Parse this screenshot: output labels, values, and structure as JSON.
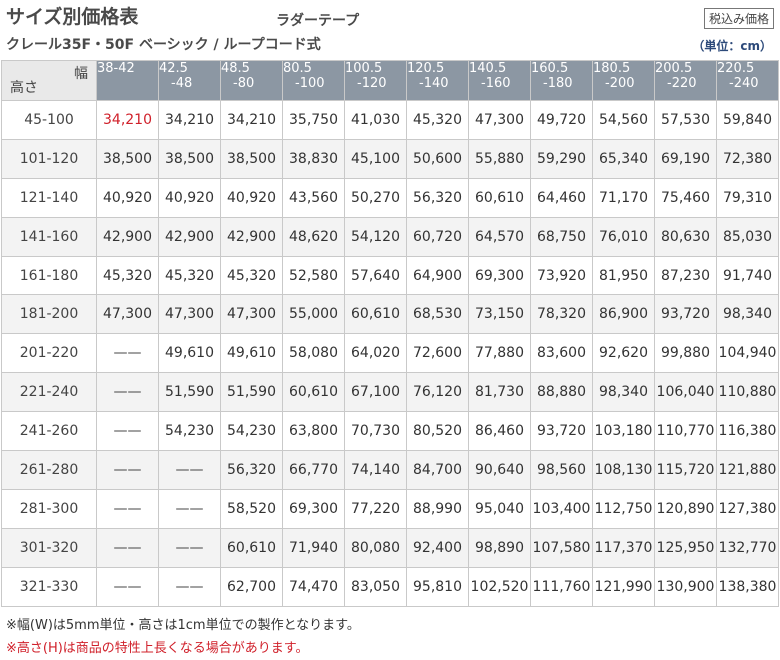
{
  "header": {
    "title": "サイズ別価格表",
    "subtitle_top": "ラダーテープ",
    "subtitle": "クレール35F・50F ベーシック / ループコード式",
    "tax_badge": "税込み価格",
    "unit": "（単位：cm）"
  },
  "table": {
    "corner_width_label": "幅",
    "corner_height_label": "高さ",
    "columns": [
      [
        "38-42",
        ""
      ],
      [
        "42.5",
        "-48"
      ],
      [
        "48.5",
        "-80"
      ],
      [
        "80.5",
        "-100"
      ],
      [
        "100.5",
        "-120"
      ],
      [
        "120.5",
        "-140"
      ],
      [
        "140.5",
        "-160"
      ],
      [
        "160.5",
        "-180"
      ],
      [
        "180.5",
        "-200"
      ],
      [
        "200.5",
        "-220"
      ],
      [
        "220.5",
        "-240"
      ]
    ],
    "rows": [
      {
        "height": "45-100",
        "prices": [
          "34,210",
          "34,210",
          "34,210",
          "35,750",
          "41,030",
          "45,320",
          "47,300",
          "49,720",
          "54,560",
          "57,530",
          "59,840"
        ]
      },
      {
        "height": "101-120",
        "prices": [
          "38,500",
          "38,500",
          "38,500",
          "38,830",
          "45,100",
          "50,600",
          "55,880",
          "59,290",
          "65,340",
          "69,190",
          "72,380"
        ]
      },
      {
        "height": "121-140",
        "prices": [
          "40,920",
          "40,920",
          "40,920",
          "43,560",
          "50,270",
          "56,320",
          "60,610",
          "64,460",
          "71,170",
          "75,460",
          "79,310"
        ]
      },
      {
        "height": "141-160",
        "prices": [
          "42,900",
          "42,900",
          "42,900",
          "48,620",
          "54,120",
          "60,720",
          "64,570",
          "68,750",
          "76,010",
          "80,630",
          "85,030"
        ]
      },
      {
        "height": "161-180",
        "prices": [
          "45,320",
          "45,320",
          "45,320",
          "52,580",
          "57,640",
          "64,900",
          "69,300",
          "73,920",
          "81,950",
          "87,230",
          "91,740"
        ]
      },
      {
        "height": "181-200",
        "prices": [
          "47,300",
          "47,300",
          "47,300",
          "55,000",
          "60,610",
          "68,530",
          "73,150",
          "78,320",
          "86,900",
          "93,720",
          "98,340"
        ]
      },
      {
        "height": "201-220",
        "prices": [
          "——",
          "49,610",
          "49,610",
          "58,080",
          "64,020",
          "72,600",
          "77,880",
          "83,600",
          "92,620",
          "99,880",
          "104,940"
        ]
      },
      {
        "height": "221-240",
        "prices": [
          "——",
          "51,590",
          "51,590",
          "60,610",
          "67,100",
          "76,120",
          "81,730",
          "88,880",
          "98,340",
          "106,040",
          "110,880"
        ]
      },
      {
        "height": "241-260",
        "prices": [
          "——",
          "54,230",
          "54,230",
          "63,800",
          "70,730",
          "80,520",
          "86,460",
          "93,720",
          "103,180",
          "110,770",
          "116,380"
        ]
      },
      {
        "height": "261-280",
        "prices": [
          "——",
          "——",
          "56,320",
          "66,770",
          "74,140",
          "84,700",
          "90,640",
          "98,560",
          "108,130",
          "115,720",
          "121,880"
        ]
      },
      {
        "height": "281-300",
        "prices": [
          "——",
          "——",
          "58,520",
          "69,300",
          "77,220",
          "88,990",
          "95,040",
          "103,400",
          "112,750",
          "120,890",
          "127,380"
        ]
      },
      {
        "height": "301-320",
        "prices": [
          "——",
          "——",
          "60,610",
          "71,940",
          "80,080",
          "92,400",
          "98,890",
          "107,580",
          "117,370",
          "125,950",
          "132,770"
        ]
      },
      {
        "height": "321-330",
        "prices": [
          "——",
          "——",
          "62,700",
          "74,470",
          "83,050",
          "95,810",
          "102,520",
          "111,760",
          "121,990",
          "130,900",
          "138,380"
        ]
      }
    ],
    "highlight_color": "#d0202a",
    "header_bg_color": "#8c97a3"
  },
  "notes": {
    "note1": "※幅(W)は5mm単位・高さは1cm単位での製作となります。",
    "note2": "※高さ(H)は商品の特性上長くなる場合があります。"
  }
}
